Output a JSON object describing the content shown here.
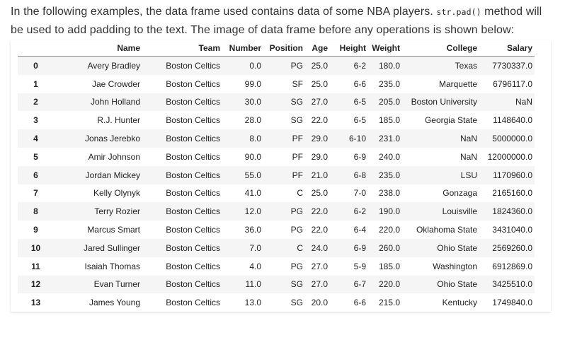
{
  "intro": {
    "part1": "In the following examples, the data frame used contains data of some NBA players. ",
    "code": "str.pad()",
    "part2": " method will be used to add padding to the text. The image of data frame before any operations is shown below:"
  },
  "table": {
    "columns": [
      "",
      "Name",
      "Team",
      "Number",
      "Position",
      "Age",
      "Height",
      "Weight",
      "College",
      "Salary"
    ],
    "rows": [
      [
        "0",
        "Avery Bradley",
        "Boston Celtics",
        "0.0",
        "PG",
        "25.0",
        "6-2",
        "180.0",
        "Texas",
        "7730337.0"
      ],
      [
        "1",
        "Jae Crowder",
        "Boston Celtics",
        "99.0",
        "SF",
        "25.0",
        "6-6",
        "235.0",
        "Marquette",
        "6796117.0"
      ],
      [
        "2",
        "John Holland",
        "Boston Celtics",
        "30.0",
        "SG",
        "27.0",
        "6-5",
        "205.0",
        "Boston University",
        "NaN"
      ],
      [
        "3",
        "R.J. Hunter",
        "Boston Celtics",
        "28.0",
        "SG",
        "22.0",
        "6-5",
        "185.0",
        "Georgia State",
        "1148640.0"
      ],
      [
        "4",
        "Jonas Jerebko",
        "Boston Celtics",
        "8.0",
        "PF",
        "29.0",
        "6-10",
        "231.0",
        "NaN",
        "5000000.0"
      ],
      [
        "5",
        "Amir Johnson",
        "Boston Celtics",
        "90.0",
        "PF",
        "29.0",
        "6-9",
        "240.0",
        "NaN",
        "12000000.0"
      ],
      [
        "6",
        "Jordan Mickey",
        "Boston Celtics",
        "55.0",
        "PF",
        "21.0",
        "6-8",
        "235.0",
        "LSU",
        "1170960.0"
      ],
      [
        "7",
        "Kelly Olynyk",
        "Boston Celtics",
        "41.0",
        "C",
        "25.0",
        "7-0",
        "238.0",
        "Gonzaga",
        "2165160.0"
      ],
      [
        "8",
        "Terry Rozier",
        "Boston Celtics",
        "12.0",
        "PG",
        "22.0",
        "6-2",
        "190.0",
        "Louisville",
        "1824360.0"
      ],
      [
        "9",
        "Marcus Smart",
        "Boston Celtics",
        "36.0",
        "PG",
        "22.0",
        "6-4",
        "220.0",
        "Oklahoma State",
        "3431040.0"
      ],
      [
        "10",
        "Jared Sullinger",
        "Boston Celtics",
        "7.0",
        "C",
        "24.0",
        "6-9",
        "260.0",
        "Ohio State",
        "2569260.0"
      ],
      [
        "11",
        "Isaiah Thomas",
        "Boston Celtics",
        "4.0",
        "PG",
        "27.0",
        "5-9",
        "185.0",
        "Washington",
        "6912869.0"
      ],
      [
        "12",
        "Evan Turner",
        "Boston Celtics",
        "11.0",
        "SG",
        "27.0",
        "6-7",
        "220.0",
        "Ohio State",
        "3425510.0"
      ],
      [
        "13",
        "James Young",
        "Boston Celtics",
        "13.0",
        "SG",
        "20.0",
        "6-6",
        "215.0",
        "Kentucky",
        "1749840.0"
      ]
    ]
  }
}
